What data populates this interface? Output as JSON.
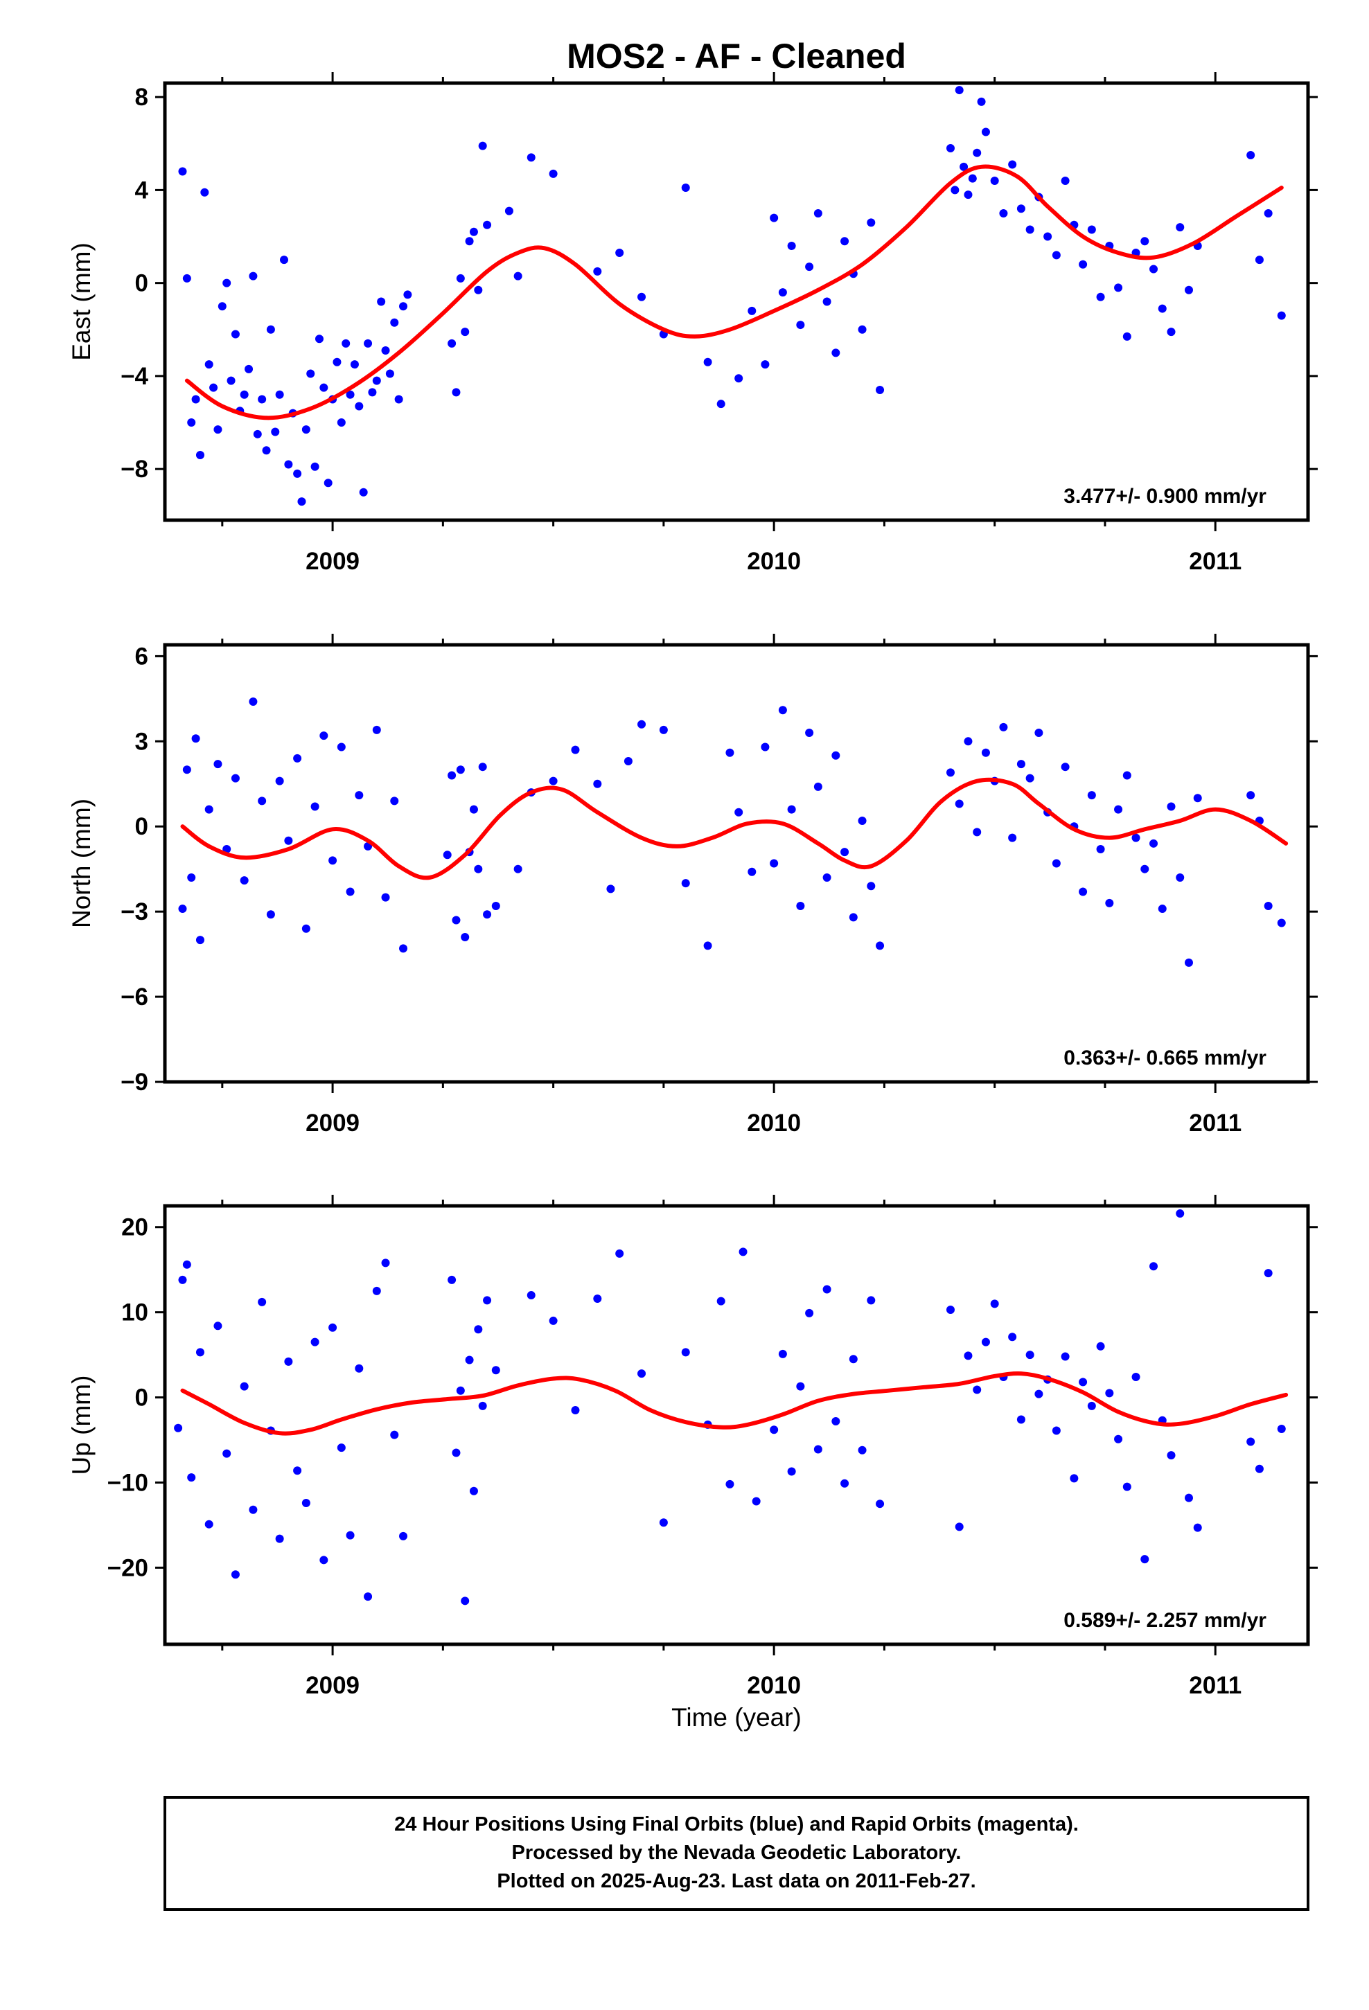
{
  "title": "MOS2  - AF - Cleaned",
  "footer": {
    "line1": "24 Hour Positions Using Final Orbits (blue) and Rapid Orbits (magenta).",
    "line2": "Processed by the Nevada Geodetic Laboratory.",
    "line3": "Plotted on 2025-Aug-23. Last data on 2011-Feb-27."
  },
  "colors": {
    "points": "#0000ff",
    "fit": "#ff0000",
    "frame": "#000000"
  },
  "chart_data": [
    {
      "type": "scatter",
      "ylabel": "East (mm)",
      "xlabel": "",
      "rate_label": "3.477+/- 0.900 mm/yr",
      "xlim": [
        2008.62,
        2011.21
      ],
      "ylim": [
        -10.2,
        8.6
      ],
      "yticks": [
        -8,
        -4,
        0,
        4,
        8
      ],
      "yticklabels": [
        "−8",
        "−4",
        "0",
        "4",
        "8"
      ],
      "xticks": [
        2009,
        2010,
        2011
      ],
      "xticklabels": [
        "2009",
        "2010",
        "2011"
      ],
      "fit": {
        "x": [
          2008.67,
          2008.75,
          2008.85,
          2008.95,
          2009.05,
          2009.15,
          2009.25,
          2009.35,
          2009.42,
          2009.48,
          2009.55,
          2009.65,
          2009.75,
          2009.82,
          2009.9,
          2010.0,
          2010.1,
          2010.2,
          2010.3,
          2010.4,
          2010.47,
          2010.55,
          2010.62,
          2010.7,
          2010.78,
          2010.86,
          2010.95,
          2011.05,
          2011.15
        ],
        "y": [
          -4.2,
          -5.3,
          -5.8,
          -5.4,
          -4.4,
          -3.0,
          -1.3,
          0.5,
          1.3,
          1.5,
          0.8,
          -0.9,
          -2.0,
          -2.3,
          -2.0,
          -1.2,
          -0.3,
          0.8,
          2.4,
          4.3,
          5.0,
          4.6,
          3.3,
          2.0,
          1.3,
          1.1,
          1.7,
          2.9,
          4.1
        ]
      },
      "x": [
        2008.66,
        2008.67,
        2008.68,
        2008.69,
        2008.7,
        2008.71,
        2008.72,
        2008.73,
        2008.74,
        2008.75,
        2008.76,
        2008.77,
        2008.78,
        2008.79,
        2008.8,
        2008.81,
        2008.82,
        2008.83,
        2008.84,
        2008.85,
        2008.86,
        2008.87,
        2008.88,
        2008.89,
        2008.9,
        2008.91,
        2008.92,
        2008.93,
        2008.94,
        2008.95,
        2008.96,
        2008.97,
        2008.98,
        2008.99,
        2009.0,
        2009.01,
        2009.02,
        2009.03,
        2009.04,
        2009.05,
        2009.06,
        2009.07,
        2009.08,
        2009.09,
        2009.1,
        2009.11,
        2009.12,
        2009.13,
        2009.14,
        2009.15,
        2009.16,
        2009.17,
        2009.27,
        2009.28,
        2009.29,
        2009.3,
        2009.31,
        2009.32,
        2009.33,
        2009.34,
        2009.35,
        2009.4,
        2009.42,
        2009.45,
        2009.5,
        2009.6,
        2009.65,
        2009.7,
        2009.75,
        2009.8,
        2009.85,
        2009.88,
        2009.92,
        2009.95,
        2009.98,
        2010.0,
        2010.02,
        2010.04,
        2010.06,
        2010.08,
        2010.1,
        2010.12,
        2010.14,
        2010.16,
        2010.18,
        2010.2,
        2010.22,
        2010.24,
        2010.4,
        2010.41,
        2010.42,
        2010.43,
        2010.44,
        2010.45,
        2010.46,
        2010.47,
        2010.48,
        2010.5,
        2010.52,
        2010.54,
        2010.56,
        2010.58,
        2010.6,
        2010.62,
        2010.64,
        2010.66,
        2010.68,
        2010.7,
        2010.72,
        2010.74,
        2010.76,
        2010.78,
        2010.8,
        2010.82,
        2010.84,
        2010.86,
        2010.88,
        2010.9,
        2010.92,
        2010.94,
        2010.96,
        2011.08,
        2011.1,
        2011.12,
        2011.15
      ],
      "y": [
        4.8,
        0.2,
        -6.0,
        -5.0,
        -7.4,
        3.9,
        -3.5,
        -4.5,
        -6.3,
        -1.0,
        0.0,
        -4.2,
        -2.2,
        -5.5,
        -4.8,
        -3.7,
        0.3,
        -6.5,
        -5.0,
        -7.2,
        -2.0,
        -6.4,
        -4.8,
        1.0,
        -7.8,
        -5.6,
        -8.2,
        -9.4,
        -6.3,
        -3.9,
        -7.9,
        -2.4,
        -4.5,
        -8.6,
        -5.0,
        -3.4,
        -6.0,
        -2.6,
        -4.8,
        -3.5,
        -5.3,
        -9.0,
        -2.6,
        -4.7,
        -4.2,
        -0.8,
        -2.9,
        -3.9,
        -1.7,
        -5.0,
        -1.0,
        -0.5,
        -2.6,
        -4.7,
        0.2,
        -2.1,
        1.8,
        2.2,
        -0.3,
        5.9,
        2.5,
        3.1,
        0.3,
        5.4,
        4.7,
        0.5,
        1.3,
        -0.6,
        -2.2,
        4.1,
        -3.4,
        -5.2,
        -4.1,
        -1.2,
        -3.5,
        2.8,
        -0.4,
        1.6,
        -1.8,
        0.7,
        3.0,
        -0.8,
        -3.0,
        1.8,
        0.4,
        -2.0,
        2.6,
        -4.6,
        5.8,
        4.0,
        8.3,
        5.0,
        3.8,
        4.5,
        5.6,
        7.8,
        6.5,
        4.4,
        3.0,
        5.1,
        3.2,
        2.3,
        3.7,
        2.0,
        1.2,
        4.4,
        2.5,
        0.8,
        2.3,
        -0.6,
        1.6,
        -0.2,
        -2.3,
        1.3,
        1.8,
        0.6,
        -1.1,
        -2.1,
        2.4,
        -0.3,
        1.6,
        5.5,
        1.0,
        3.0,
        -1.4
      ]
    },
    {
      "type": "scatter",
      "ylabel": "North (mm)",
      "xlabel": "",
      "rate_label": "0.363+/- 0.665 mm/yr",
      "xlim": [
        2008.62,
        2011.21
      ],
      "ylim": [
        -9,
        6.4
      ],
      "yticks": [
        -9,
        -6,
        -3,
        0,
        3,
        6
      ],
      "yticklabels": [
        "−9",
        "−6",
        "−3",
        "0",
        "3",
        "6"
      ],
      "xticks": [
        2009,
        2010,
        2011
      ],
      "xticklabels": [
        "2009",
        "2010",
        "2011"
      ],
      "fit": {
        "x": [
          2008.66,
          2008.72,
          2008.8,
          2008.9,
          2009.0,
          2009.08,
          2009.15,
          2009.22,
          2009.3,
          2009.38,
          2009.45,
          2009.52,
          2009.6,
          2009.7,
          2009.78,
          2009.86,
          2009.94,
          2010.02,
          2010.1,
          2010.16,
          2010.22,
          2010.3,
          2010.38,
          2010.46,
          2010.54,
          2010.6,
          2010.68,
          2010.76,
          2010.84,
          2010.92,
          2011.0,
          2011.08,
          2011.16
        ],
        "y": [
          0.0,
          -0.7,
          -1.1,
          -0.8,
          -0.1,
          -0.5,
          -1.4,
          -1.8,
          -1.0,
          0.4,
          1.2,
          1.3,
          0.5,
          -0.4,
          -0.7,
          -0.4,
          0.1,
          0.1,
          -0.6,
          -1.2,
          -1.4,
          -0.5,
          0.9,
          1.6,
          1.5,
          0.8,
          -0.1,
          -0.4,
          -0.1,
          0.2,
          0.6,
          0.2,
          -0.6
        ]
      },
      "x": [
        2008.66,
        2008.67,
        2008.68,
        2008.69,
        2008.7,
        2008.72,
        2008.74,
        2008.76,
        2008.78,
        2008.8,
        2008.82,
        2008.84,
        2008.86,
        2008.88,
        2008.9,
        2008.92,
        2008.94,
        2008.96,
        2008.98,
        2009.0,
        2009.02,
        2009.04,
        2009.06,
        2009.08,
        2009.1,
        2009.12,
        2009.14,
        2009.16,
        2009.26,
        2009.27,
        2009.28,
        2009.29,
        2009.3,
        2009.31,
        2009.32,
        2009.33,
        2009.34,
        2009.35,
        2009.37,
        2009.42,
        2009.45,
        2009.5,
        2009.55,
        2009.6,
        2009.63,
        2009.67,
        2009.7,
        2009.75,
        2009.8,
        2009.85,
        2009.9,
        2009.92,
        2009.95,
        2009.98,
        2010.0,
        2010.02,
        2010.04,
        2010.06,
        2010.08,
        2010.1,
        2010.12,
        2010.14,
        2010.16,
        2010.18,
        2010.2,
        2010.22,
        2010.24,
        2010.4,
        2010.42,
        2010.44,
        2010.46,
        2010.48,
        2010.5,
        2010.52,
        2010.54,
        2010.56,
        2010.58,
        2010.6,
        2010.62,
        2010.64,
        2010.66,
        2010.68,
        2010.7,
        2010.72,
        2010.74,
        2010.76,
        2010.78,
        2010.8,
        2010.82,
        2010.84,
        2010.86,
        2010.88,
        2010.9,
        2010.92,
        2010.94,
        2010.96,
        2011.08,
        2011.1,
        2011.12,
        2011.15
      ],
      "y": [
        -2.9,
        2.0,
        -1.8,
        3.1,
        -4.0,
        0.6,
        2.2,
        -0.8,
        1.7,
        -1.9,
        4.4,
        0.9,
        -3.1,
        1.6,
        -0.5,
        2.4,
        -3.6,
        0.7,
        3.2,
        -1.2,
        2.8,
        -2.3,
        1.1,
        -0.7,
        3.4,
        -2.5,
        0.9,
        -4.3,
        -1.0,
        1.8,
        -3.3,
        2.0,
        -3.9,
        -0.9,
        0.6,
        -1.5,
        2.1,
        -3.1,
        -2.8,
        -1.5,
        1.2,
        1.6,
        2.7,
        1.5,
        -2.2,
        2.3,
        3.6,
        3.4,
        -2.0,
        -4.2,
        2.6,
        0.5,
        -1.6,
        2.8,
        -1.3,
        4.1,
        0.6,
        -2.8,
        3.3,
        1.4,
        -1.8,
        2.5,
        -0.9,
        -3.2,
        0.2,
        -2.1,
        -4.2,
        1.9,
        0.8,
        3.0,
        -0.2,
        2.6,
        1.6,
        3.5,
        -0.4,
        2.2,
        1.7,
        3.3,
        0.5,
        -1.3,
        2.1,
        0.0,
        -2.3,
        1.1,
        -0.8,
        -2.7,
        0.6,
        1.8,
        -0.4,
        -1.5,
        -0.6,
        -2.9,
        0.7,
        -1.8,
        -4.8,
        1.0,
        1.1,
        0.2,
        -2.8,
        -3.4
      ]
    },
    {
      "type": "scatter",
      "ylabel": "Up (mm)",
      "xlabel": "Time (year)",
      "rate_label": "0.589+/- 2.257 mm/yr",
      "xlim": [
        2008.62,
        2011.21
      ],
      "ylim": [
        -29,
        22.5
      ],
      "yticks": [
        -20,
        -10,
        0,
        10,
        20
      ],
      "yticklabels": [
        "−20",
        "−10",
        "0",
        "10",
        "20"
      ],
      "xticks": [
        2009,
        2010,
        2011
      ],
      "xticklabels": [
        "2009",
        "2010",
        "2011"
      ],
      "fit": {
        "x": [
          2008.66,
          2008.72,
          2008.8,
          2008.88,
          2008.95,
          2009.02,
          2009.1,
          2009.18,
          2009.26,
          2009.34,
          2009.42,
          2009.5,
          2009.56,
          2009.64,
          2009.72,
          2009.8,
          2009.88,
          2009.94,
          2010.02,
          2010.1,
          2010.18,
          2010.26,
          2010.34,
          2010.42,
          2010.5,
          2010.56,
          2010.62,
          2010.7,
          2010.78,
          2010.86,
          2010.92,
          2011.0,
          2011.08,
          2011.16
        ],
        "y": [
          0.8,
          -0.8,
          -3.0,
          -4.2,
          -3.8,
          -2.6,
          -1.4,
          -0.6,
          -0.2,
          0.2,
          1.4,
          2.2,
          2.1,
          0.8,
          -1.5,
          -2.9,
          -3.5,
          -3.2,
          -2.0,
          -0.4,
          0.4,
          0.8,
          1.2,
          1.6,
          2.5,
          2.8,
          2.2,
          0.6,
          -1.7,
          -3.0,
          -3.1,
          -2.2,
          -0.8,
          0.3
        ]
      },
      "x": [
        2008.65,
        2008.66,
        2008.67,
        2008.68,
        2008.7,
        2008.72,
        2008.74,
        2008.76,
        2008.78,
        2008.8,
        2008.82,
        2008.84,
        2008.86,
        2008.88,
        2008.9,
        2008.92,
        2008.94,
        2008.96,
        2008.98,
        2009.0,
        2009.02,
        2009.04,
        2009.06,
        2009.08,
        2009.1,
        2009.12,
        2009.14,
        2009.16,
        2009.27,
        2009.28,
        2009.29,
        2009.3,
        2009.31,
        2009.32,
        2009.33,
        2009.34,
        2009.35,
        2009.37,
        2009.45,
        2009.5,
        2009.55,
        2009.6,
        2009.65,
        2009.7,
        2009.75,
        2009.8,
        2009.85,
        2009.88,
        2009.9,
        2009.93,
        2009.96,
        2010.0,
        2010.02,
        2010.04,
        2010.06,
        2010.08,
        2010.1,
        2010.12,
        2010.14,
        2010.16,
        2010.18,
        2010.2,
        2010.22,
        2010.24,
        2010.4,
        2010.42,
        2010.44,
        2010.46,
        2010.48,
        2010.5,
        2010.52,
        2010.54,
        2010.56,
        2010.58,
        2010.6,
        2010.62,
        2010.64,
        2010.66,
        2010.68,
        2010.7,
        2010.72,
        2010.74,
        2010.76,
        2010.78,
        2010.8,
        2010.82,
        2010.84,
        2010.86,
        2010.88,
        2010.9,
        2010.92,
        2010.94,
        2010.96,
        2011.08,
        2011.1,
        2011.12,
        2011.15
      ],
      "y": [
        -3.6,
        13.8,
        15.6,
        -9.4,
        5.3,
        -14.9,
        8.4,
        -6.6,
        -20.8,
        1.3,
        -13.2,
        11.2,
        -3.9,
        -16.6,
        4.2,
        -8.6,
        -12.4,
        6.5,
        -19.1,
        8.2,
        -5.9,
        -16.2,
        3.4,
        -23.4,
        12.5,
        15.8,
        -4.4,
        -16.3,
        13.8,
        -6.5,
        0.8,
        -23.9,
        4.4,
        -11.0,
        8.0,
        -1.0,
        11.4,
        3.2,
        12.0,
        9.0,
        -1.5,
        11.6,
        16.9,
        2.8,
        -14.7,
        5.3,
        -3.2,
        11.3,
        -10.2,
        17.1,
        -12.2,
        -3.8,
        5.1,
        -8.7,
        1.3,
        9.9,
        -6.1,
        12.7,
        -2.8,
        -10.1,
        4.5,
        -6.2,
        11.4,
        -12.5,
        10.3,
        -15.2,
        4.9,
        0.9,
        6.5,
        11.0,
        2.4,
        7.1,
        -2.6,
        5.0,
        0.4,
        2.1,
        -3.9,
        4.8,
        -9.5,
        1.8,
        -1.0,
        6.0,
        0.5,
        -4.9,
        -10.5,
        2.4,
        -19.0,
        15.4,
        -2.7,
        -6.8,
        21.6,
        -11.8,
        -15.3,
        -5.2,
        -8.4,
        14.6,
        -3.7
      ]
    }
  ]
}
